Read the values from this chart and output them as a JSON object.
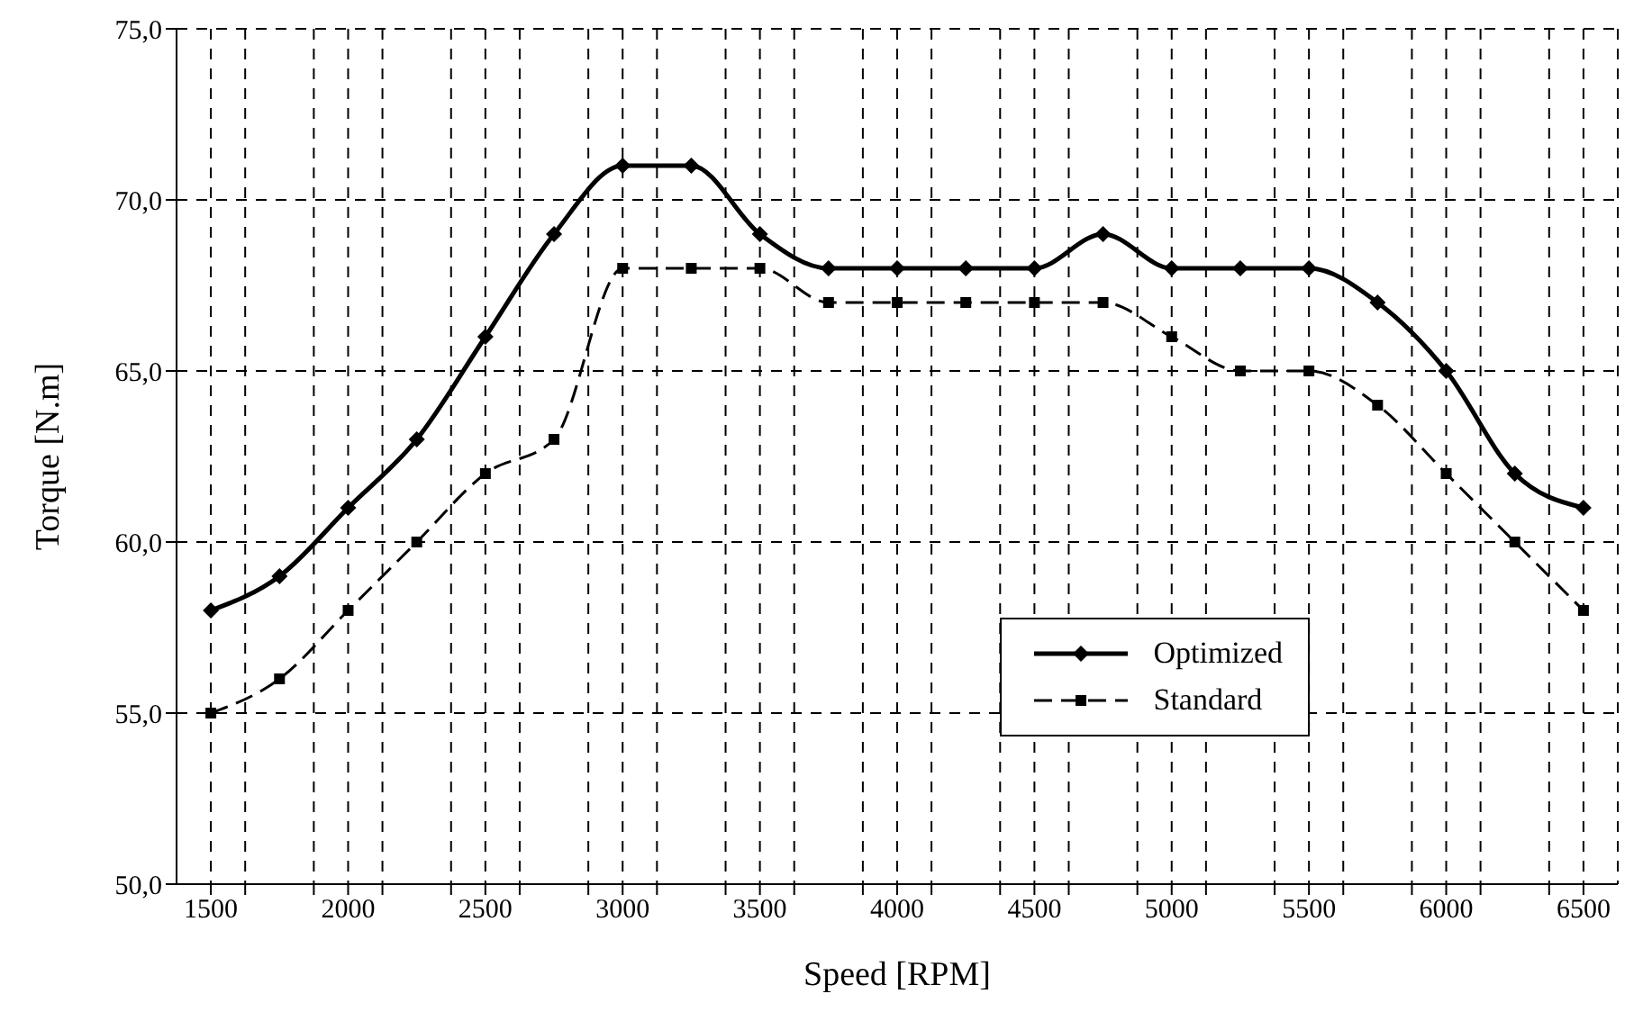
{
  "chart_data": {
    "type": "line",
    "xlabel": "Speed [RPM]",
    "ylabel": "Torque [N.m]",
    "x": [
      1500,
      1750,
      2000,
      2250,
      2500,
      2750,
      3000,
      3250,
      3500,
      3750,
      4000,
      4250,
      4500,
      4750,
      5000,
      5250,
      5500,
      5750,
      6000,
      6250,
      6500
    ],
    "series": [
      {
        "name": "Optimized",
        "color": "#000000",
        "marker": "diamond",
        "line_style": "solid",
        "values": [
          58,
          59,
          61,
          63,
          66,
          69,
          71,
          71,
          69,
          68,
          68,
          68,
          68,
          69,
          68,
          68,
          68,
          67,
          65,
          62,
          61
        ]
      },
      {
        "name": "Standard",
        "color": "#000000",
        "marker": "square",
        "line_style": "dashed",
        "values": [
          55,
          56,
          58,
          60,
          62,
          63,
          68,
          68,
          68,
          67,
          67,
          67,
          67,
          67,
          66,
          65,
          65,
          64,
          62,
          60,
          58
        ]
      }
    ],
    "xlim": [
      1375,
      6625
    ],
    "xticks": [
      1500,
      {
        "value": 1625,
        "label": null
      },
      2000,
      {
        "value": 1875,
        "label": null
      },
      2500,
      {
        "value": 2125,
        "label": null
      },
      {
        "value": 2375,
        "label": null
      },
      3000,
      {
        "value": 2625,
        "label": null
      },
      {
        "value": 2875,
        "label": null
      },
      3500,
      {
        "value": 3125,
        "label": null
      },
      {
        "value": 3375,
        "label": null
      },
      4000,
      {
        "value": 3625,
        "label": null
      },
      {
        "value": 3875,
        "label": null
      },
      4500,
      {
        "value": 4125,
        "label": null
      },
      {
        "value": 4375,
        "label": null
      },
      5000,
      {
        "value": 4625,
        "label": null
      },
      {
        "value": 4875,
        "label": null
      },
      5500,
      {
        "value": 5125,
        "label": null
      },
      {
        "value": 5375,
        "label": null
      },
      6000,
      {
        "value": 5625,
        "label": null
      },
      {
        "value": 5875,
        "label": null
      },
      6500,
      {
        "value": 6125,
        "label": null
      },
      {
        "value": 6375,
        "label": null
      }
    ],
    "ylim": [
      50,
      75
    ],
    "yticks": [
      {
        "value": 50,
        "label": "50,0"
      },
      {
        "value": 55,
        "label": "55,0"
      },
      {
        "value": 60,
        "label": "60,0"
      },
      {
        "value": 65,
        "label": "65,0"
      },
      {
        "value": 70,
        "label": "70,0"
      },
      {
        "value": 75,
        "label": "75,0"
      }
    ],
    "grid": true,
    "legend": "bottom right"
  }
}
